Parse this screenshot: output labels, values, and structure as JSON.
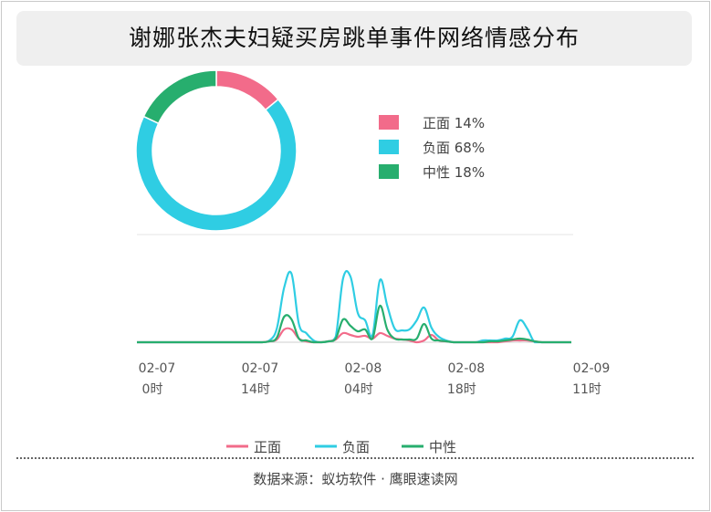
{
  "title": "谢娜张杰夫妇疑买房跳单事件网络情感分布",
  "source": "数据来源：蚁坊软件 · 鹰眼速读网",
  "colors": {
    "positive": "#f26b8a",
    "negative": "#2fcde3",
    "neutral": "#27ae6e"
  },
  "chart_data": [
    {
      "type": "pie",
      "donut": true,
      "slices": [
        {
          "label": "正面",
          "value": 14,
          "display": "正面 14%",
          "color": "#f26b8a"
        },
        {
          "label": "负面",
          "value": 68,
          "display": "负面 68%",
          "color": "#2fcde3"
        },
        {
          "label": "中性",
          "value": 18,
          "display": "中性 18%",
          "color": "#27ae6e"
        }
      ],
      "legend_position": "right"
    },
    {
      "type": "line",
      "x_ticks": [
        {
          "date": "02-07",
          "hour": "0时"
        },
        {
          "date": "02-07",
          "hour": "14时"
        },
        {
          "date": "02-08",
          "hour": "04时"
        },
        {
          "date": "02-08",
          "hour": "18时"
        },
        {
          "date": "02-09",
          "hour": "11时"
        }
      ],
      "x_hours": [
        0,
        14,
        28,
        42,
        59
      ],
      "x": [
        0,
        4,
        8,
        12,
        16,
        17,
        18,
        19,
        20,
        21,
        22,
        23,
        24,
        25,
        26,
        27,
        28,
        29,
        30,
        31,
        32,
        33,
        34,
        35,
        36,
        37,
        38,
        39,
        40,
        41,
        42,
        43,
        44,
        45,
        46,
        47,
        48,
        49,
        50,
        51,
        52,
        53,
        54,
        55,
        56,
        57,
        58,
        59
      ],
      "series": [
        {
          "name": "正面",
          "color": "#f26b8a",
          "values": [
            0,
            0,
            0,
            0,
            0,
            0,
            1,
            3,
            14,
            14,
            4,
            1,
            0,
            0,
            1,
            3,
            10,
            8,
            6,
            7,
            4,
            10,
            7,
            4,
            3,
            2,
            0,
            2,
            8,
            2,
            1,
            0,
            0,
            0,
            0,
            0,
            0,
            0,
            1,
            2,
            2,
            2,
            1,
            0,
            0,
            0,
            0,
            0
          ]
        },
        {
          "name": "负面",
          "color": "#2fcde3",
          "values": [
            0,
            0,
            0,
            0,
            0,
            0,
            2,
            15,
            60,
            75,
            20,
            10,
            2,
            0,
            1,
            6,
            70,
            72,
            32,
            24,
            8,
            68,
            40,
            15,
            13,
            14,
            24,
            38,
            16,
            6,
            2,
            0,
            0,
            0,
            0,
            2,
            2,
            2,
            4,
            6,
            24,
            15,
            0,
            0,
            0,
            0,
            0,
            0
          ]
        },
        {
          "name": "中性",
          "color": "#27ae6e",
          "values": [
            0,
            0,
            0,
            0,
            0,
            0,
            1,
            5,
            28,
            25,
            4,
            2,
            0,
            0,
            1,
            4,
            25,
            18,
            12,
            14,
            4,
            40,
            14,
            4,
            3,
            3,
            4,
            20,
            4,
            2,
            1,
            0,
            0,
            0,
            0,
            0,
            1,
            1,
            2,
            3,
            4,
            3,
            1,
            0,
            0,
            0,
            0,
            0
          ]
        }
      ],
      "ylim": [
        0,
        100
      ],
      "grid": false,
      "legend_position": "bottom"
    }
  ]
}
